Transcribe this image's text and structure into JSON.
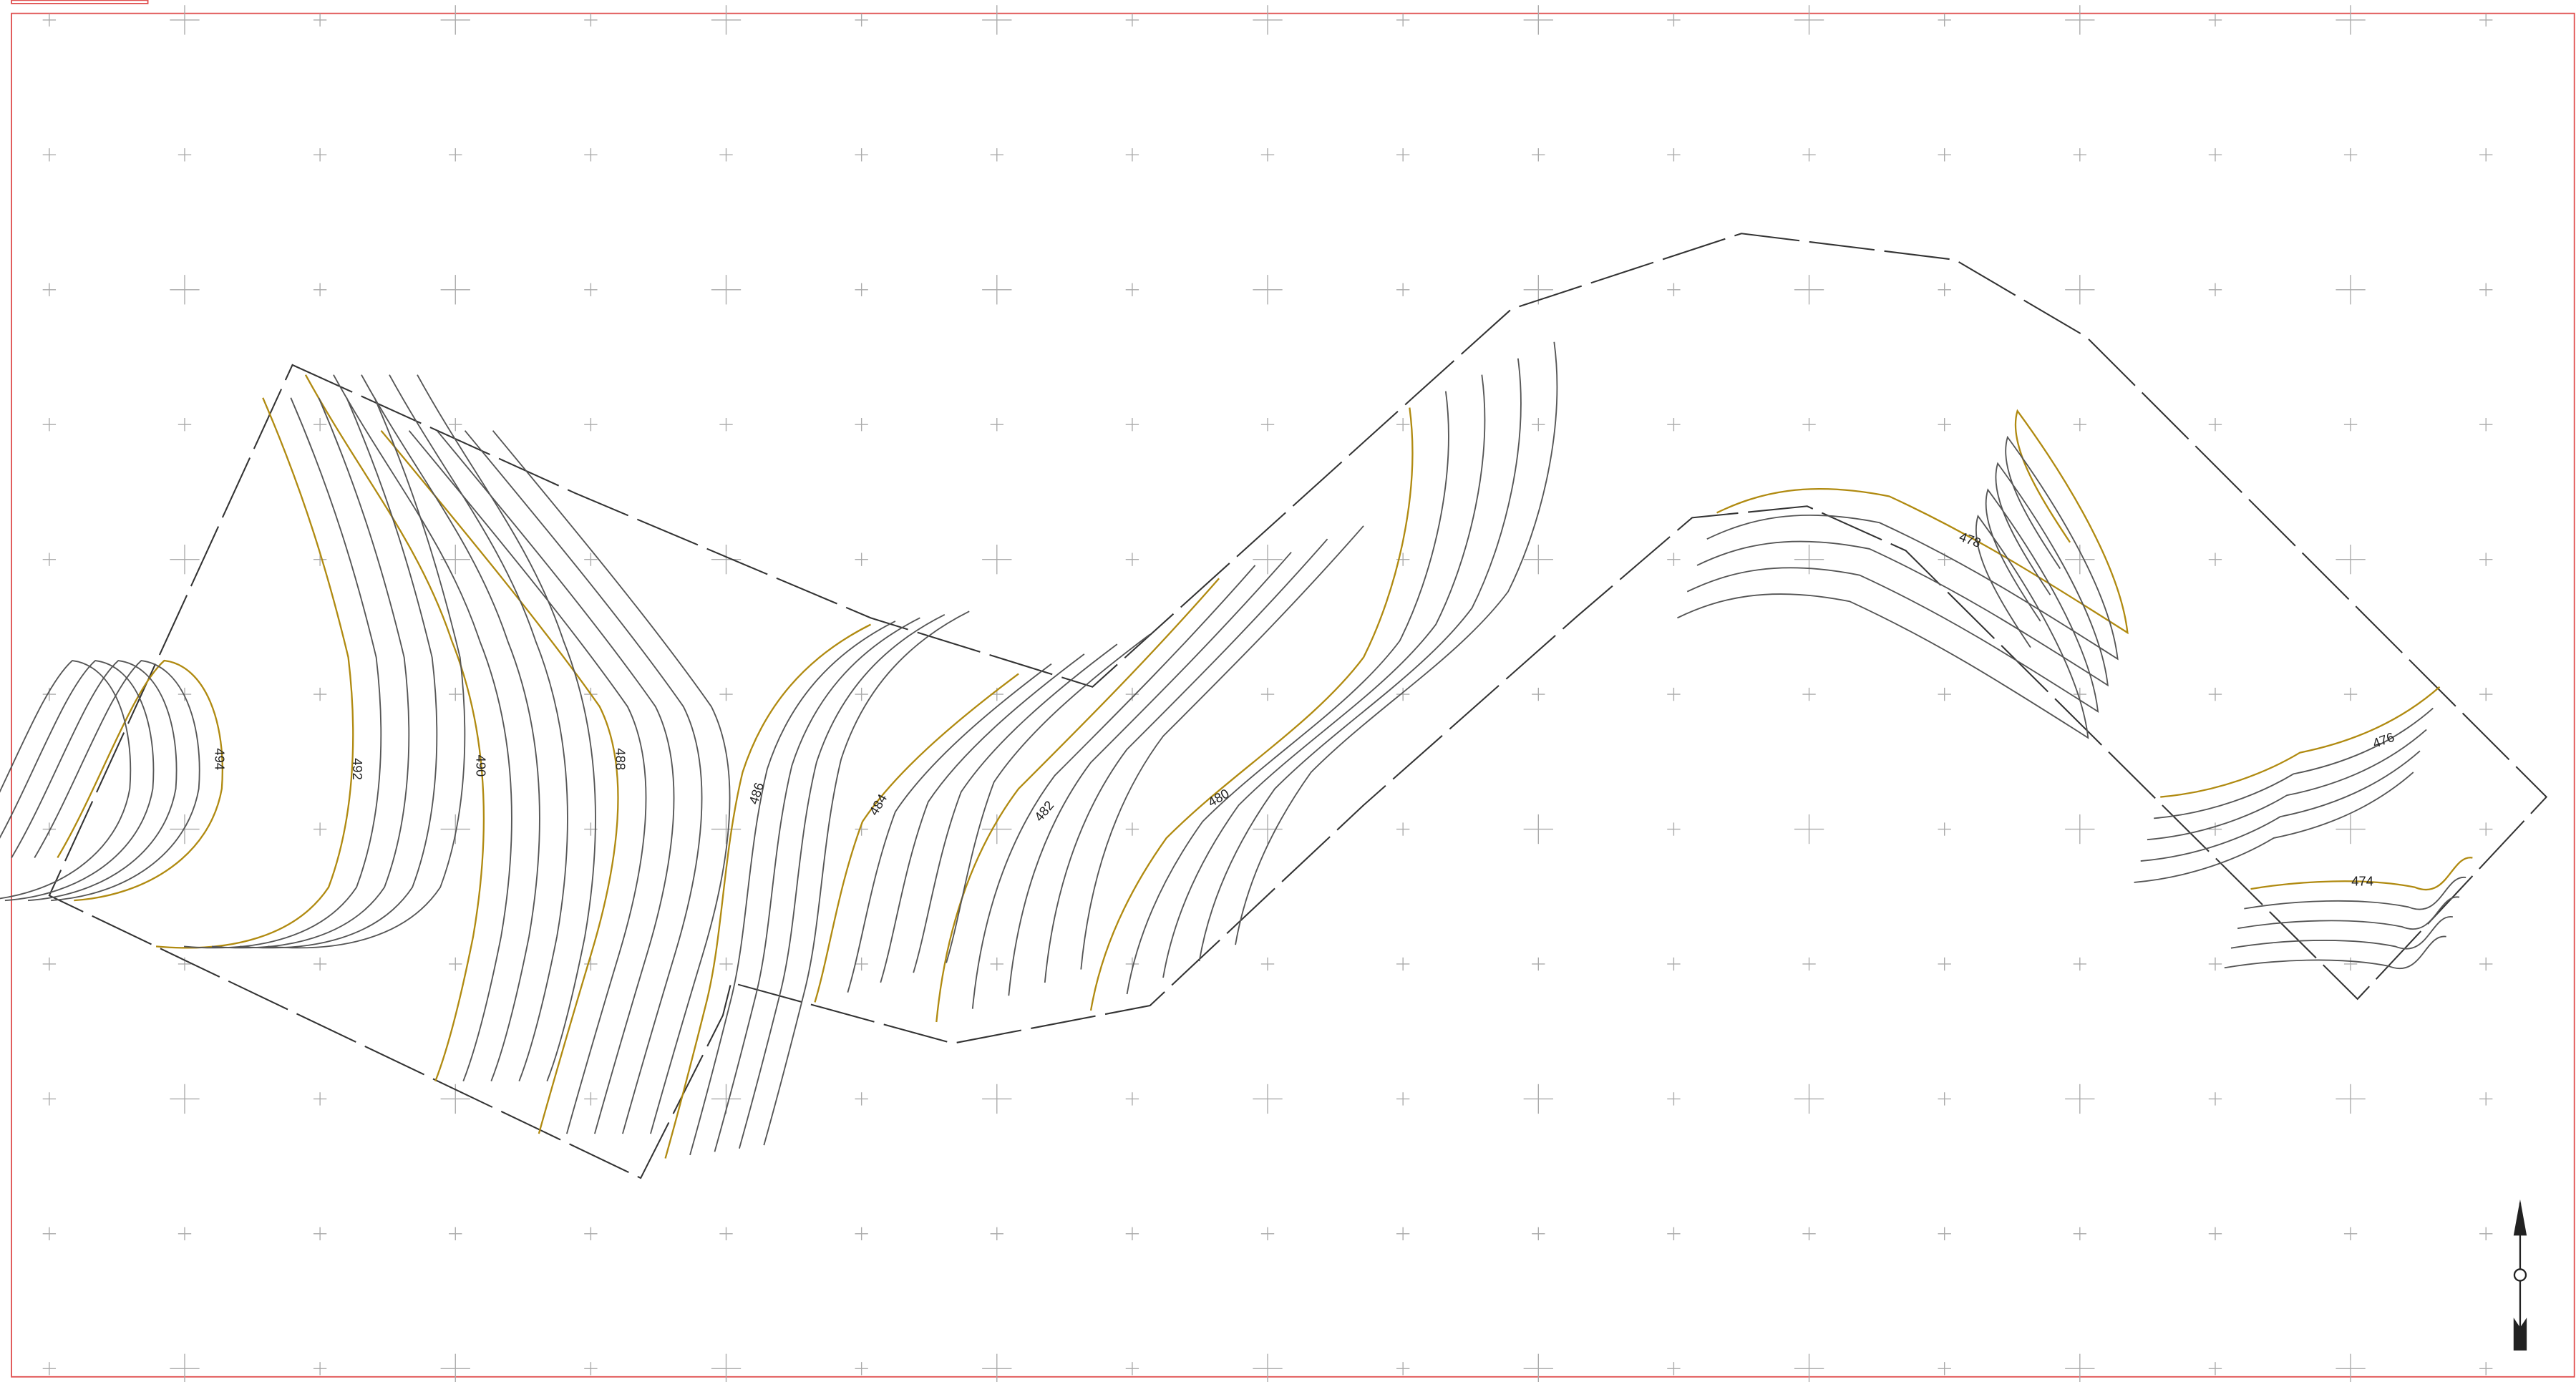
{
  "contour_labels": [
    "494",
    "492",
    "490",
    "488",
    "486",
    "484",
    "482",
    "480",
    "478",
    "476",
    "474"
  ]
}
